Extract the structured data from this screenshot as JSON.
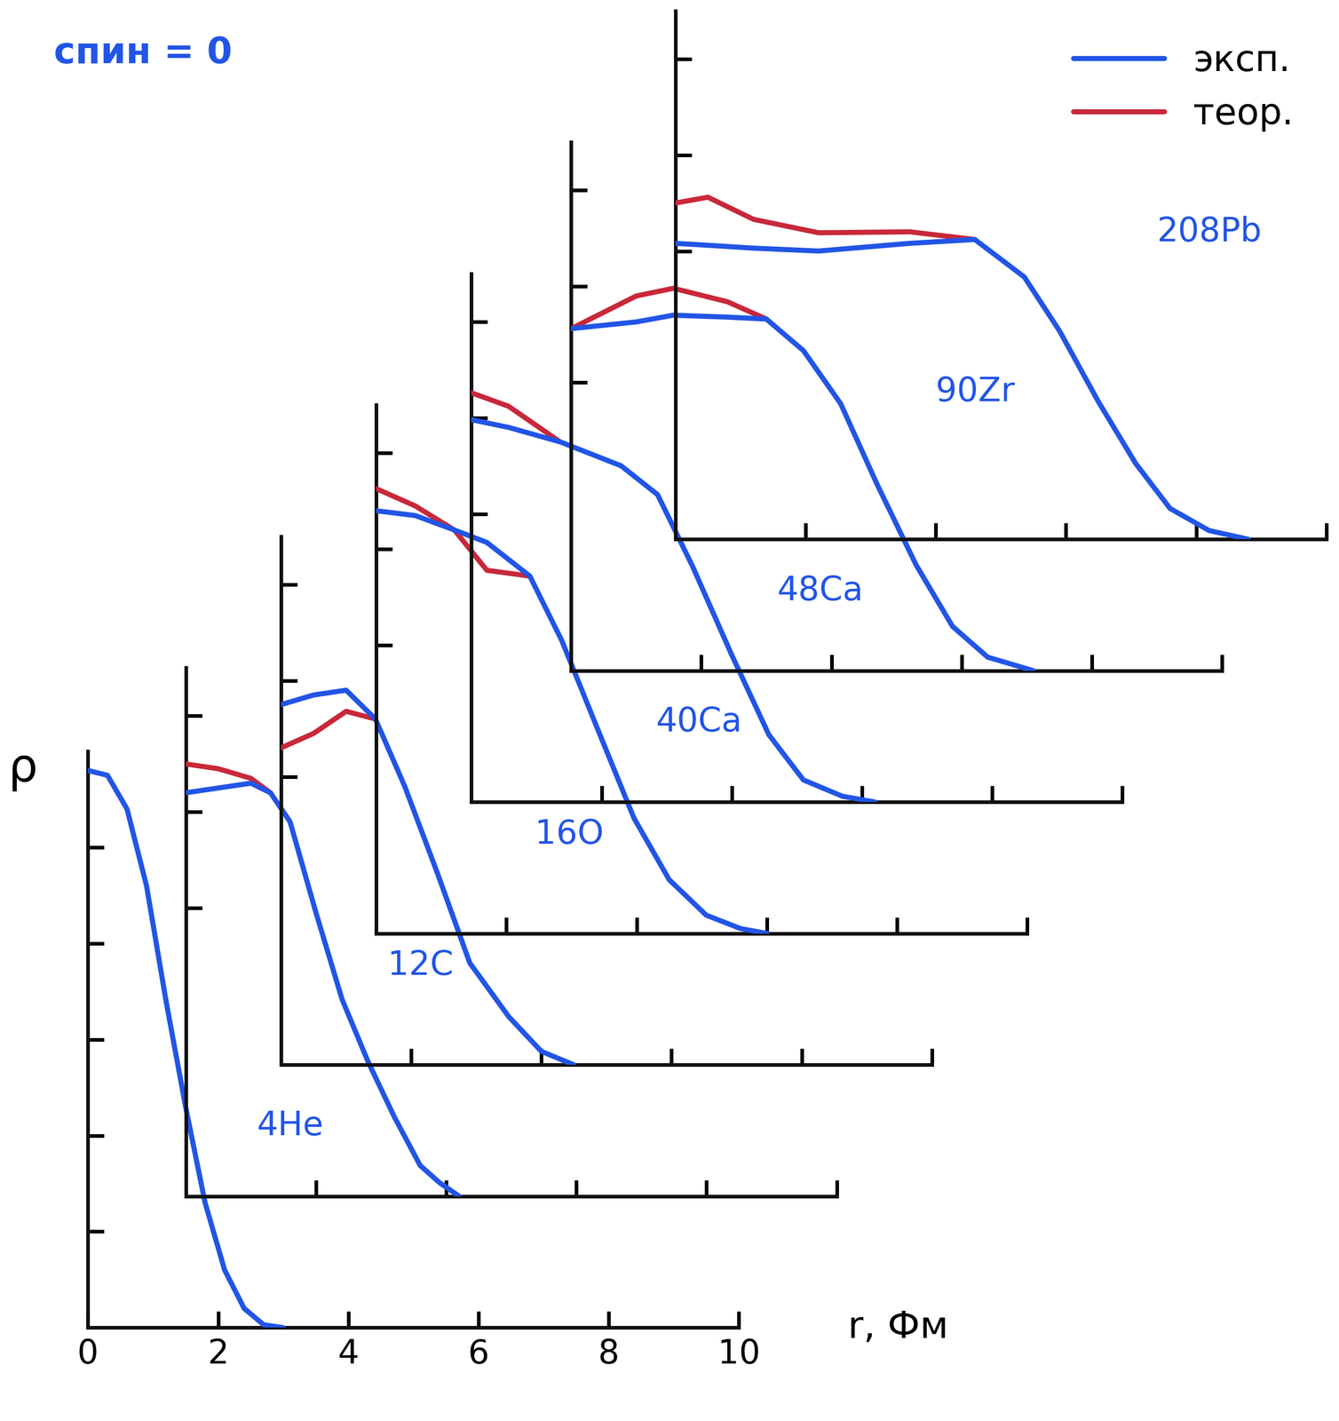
{
  "title": "спин = 0",
  "chart_data": [
    {
      "type": "line",
      "title": "4He",
      "x_label": "r, Фм",
      "y_label": "ρ",
      "x": [
        0,
        0.3,
        0.6,
        0.9,
        1.2,
        1.5,
        1.8,
        2.1,
        2.4,
        2.7,
        3.0
      ],
      "series": [
        {
          "name": "эксп.",
          "color": "#2255e6",
          "values": [
            5.8,
            5.75,
            5.4,
            4.6,
            3.4,
            2.3,
            1.3,
            0.6,
            0.2,
            0.03,
            0
          ]
        }
      ],
      "xlim": [
        0,
        10
      ],
      "xticks": [
        0,
        2,
        4,
        6,
        8,
        10
      ],
      "ylim": [
        0,
        6
      ],
      "yticks": [
        1,
        2,
        3,
        4,
        5
      ],
      "tick_labels": "x"
    },
    {
      "type": "line",
      "title": "12C",
      "x": [
        0,
        0.5,
        1.0,
        1.3,
        1.6,
        2.0,
        2.4,
        2.8,
        3.2,
        3.6,
        3.9,
        4.2
      ],
      "series": [
        {
          "name": "эксп.",
          "color": "#2255e6",
          "values": [
            4.2,
            4.25,
            4.3,
            4.2,
            3.9,
            2.95,
            2.05,
            1.4,
            0.83,
            0.32,
            0.14,
            0
          ]
        },
        {
          "name": "теор.",
          "color": "#c8283a",
          "values": [
            4.5,
            4.45,
            4.35,
            4.2,
            null,
            null,
            null,
            null,
            null,
            null,
            null,
            null
          ]
        }
      ],
      "xlim": [
        0,
        10
      ],
      "xticks": [
        2,
        4,
        6,
        8,
        10
      ],
      "ylim": [
        0,
        5.5
      ],
      "yticks": [
        3,
        4,
        5
      ],
      "tick_labels": false
    },
    {
      "type": "line",
      "title": "16O",
      "x": [
        0,
        0.5,
        1.0,
        1.45,
        1.9,
        2.4,
        2.9,
        3.5,
        4.0,
        4.5
      ],
      "series": [
        {
          "name": "эксп.",
          "color": "#2255e6",
          "values": [
            3.75,
            3.85,
            3.9,
            3.6,
            2.9,
            2.0,
            1.06,
            0.5,
            0.14,
            0
          ]
        },
        {
          "name": "теор.",
          "color": "#c8283a",
          "values": [
            3.3,
            3.45,
            3.68,
            3.6,
            null,
            null,
            null,
            null,
            null,
            null
          ]
        }
      ],
      "xlim": [
        0,
        10
      ],
      "xticks": [
        2,
        4,
        6,
        8,
        10
      ],
      "ylim": [
        0,
        5.5
      ],
      "yticks": [
        3,
        4,
        5
      ],
      "tick_labels": false
    },
    {
      "type": "line",
      "title": "40Ca",
      "x": [
        0,
        0.6,
        1.2,
        1.7,
        2.36,
        2.85,
        3.4,
        3.96,
        4.5,
        5.07,
        5.6,
        6.0
      ],
      "series": [
        {
          "name": "эксп.",
          "color": "#2255e6",
          "values": [
            4.4,
            4.35,
            4.2,
            4.07,
            3.72,
            3.05,
            2.13,
            1.2,
            0.56,
            0.19,
            0.05,
            0
          ]
        },
        {
          "name": "теор.",
          "color": "#c8283a",
          "values": [
            4.63,
            4.45,
            4.2,
            3.78,
            3.72,
            null,
            null,
            null,
            null,
            null,
            null,
            null
          ]
        }
      ],
      "xlim": [
        0,
        10
      ],
      "xticks": [
        2,
        4,
        6,
        8,
        10
      ],
      "ylim": [
        0,
        5.5
      ],
      "yticks": [
        3,
        4,
        5
      ],
      "tick_labels": false
    },
    {
      "type": "line",
      "title": "48Ca",
      "x": [
        0,
        0.57,
        1.36,
        2.3,
        2.86,
        3.4,
        4.0,
        4.57,
        5.1,
        5.7,
        6.2
      ],
      "series": [
        {
          "name": "эксп.",
          "color": "#2255e6",
          "values": [
            3.98,
            3.9,
            3.75,
            3.5,
            3.2,
            2.45,
            1.53,
            0.7,
            0.23,
            0.06,
            0
          ]
        },
        {
          "name": "теор.",
          "color": "#c8283a",
          "values": [
            4.26,
            4.12,
            3.75,
            null,
            null,
            null,
            null,
            null,
            null,
            null,
            null
          ]
        }
      ],
      "xlim": [
        0,
        10
      ],
      "xticks": [
        2,
        4,
        6,
        8,
        10
      ],
      "ylim": [
        0,
        5.5
      ],
      "yticks": [
        3,
        4,
        5
      ],
      "tick_labels": false
    },
    {
      "type": "line",
      "title": "90Zr",
      "x": [
        0,
        1.0,
        1.57,
        2.4,
        3.0,
        3.57,
        4.14,
        4.7,
        5.3,
        5.86,
        6.4,
        7.1
      ],
      "series": [
        {
          "name": "эксп.",
          "color": "#2255e6",
          "values": [
            3.56,
            3.63,
            3.7,
            3.68,
            3.66,
            3.33,
            2.78,
            1.94,
            1.1,
            0.46,
            0.14,
            0
          ]
        },
        {
          "name": "теор.",
          "color": "#c8283a",
          "values": [
            3.56,
            3.9,
            3.98,
            3.84,
            3.66,
            null,
            null,
            null,
            null,
            null,
            null,
            null
          ]
        }
      ],
      "xlim": [
        0,
        10
      ],
      "xticks": [
        2,
        4,
        6,
        8,
        10
      ],
      "ylim": [
        0,
        5.5
      ],
      "yticks": [
        3,
        4,
        5
      ],
      "tick_labels": false
    },
    {
      "type": "line",
      "title": "208Pb",
      "legend": "upper right",
      "x": [
        0,
        0.5,
        1.2,
        2.2,
        3.6,
        4.6,
        5.36,
        5.9,
        6.5,
        7.07,
        7.6,
        8.2,
        8.8
      ],
      "series": [
        {
          "name": "эксп.",
          "color": "#2255e6",
          "values": [
            3.08,
            3.06,
            3.03,
            3.0,
            3.08,
            3.12,
            2.73,
            2.17,
            1.43,
            0.79,
            0.32,
            0.09,
            0
          ]
        },
        {
          "name": "теор.",
          "color": "#c8283a",
          "values": [
            3.5,
            3.56,
            3.33,
            3.19,
            3.2,
            3.12,
            null,
            null,
            null,
            null,
            null,
            null,
            null
          ]
        }
      ],
      "xlim": [
        0,
        10
      ],
      "xticks": [
        2,
        4,
        6,
        8,
        10
      ],
      "ylim": [
        0,
        5.5
      ],
      "yticks": [
        3,
        4,
        5
      ],
      "tick_labels": false
    }
  ]
}
